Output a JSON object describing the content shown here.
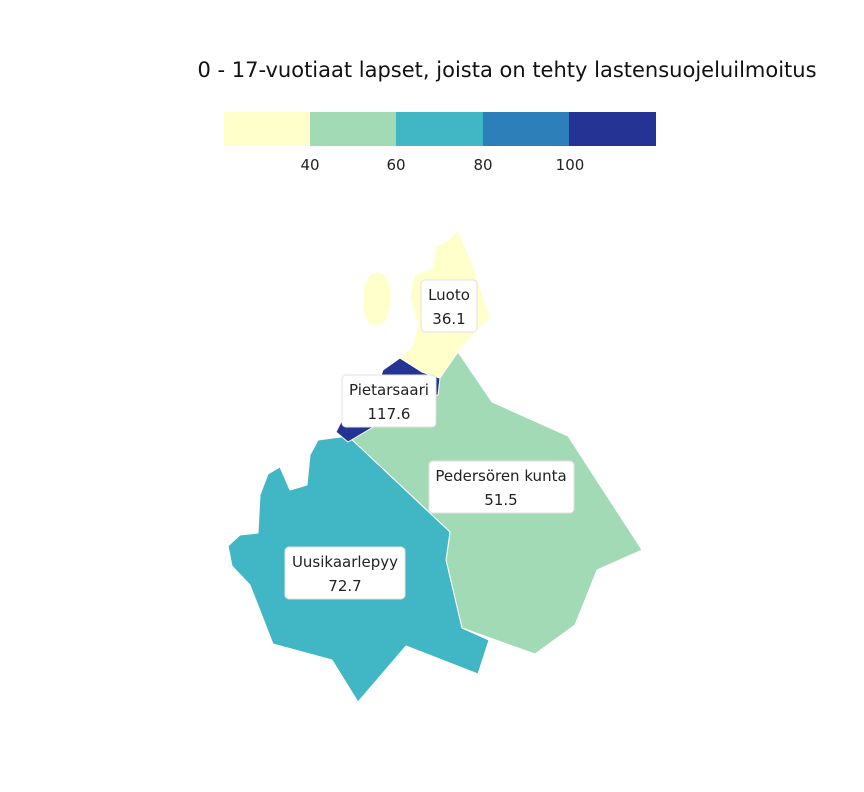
{
  "title": "0 - 17-vuotiaat lapset, joista on tehty lastensuojeluilmoitus",
  "legend": {
    "colors": [
      "#ffffcc",
      "#a1dab4",
      "#41b6c4",
      "#2c7fb8",
      "#253494"
    ],
    "ticks": [
      "40",
      "60",
      "80",
      "100"
    ]
  },
  "regions": [
    {
      "name": "Luoto",
      "value": "36.1",
      "color": "#ffffcc"
    },
    {
      "name": "Pietarsaari",
      "value": "117.6",
      "color": "#253494"
    },
    {
      "name": "Pedersören kunta",
      "value": "51.5",
      "color": "#a1dab4"
    },
    {
      "name": "Uusikaarlepyy",
      "value": "72.7",
      "color": "#41b6c4"
    }
  ]
}
